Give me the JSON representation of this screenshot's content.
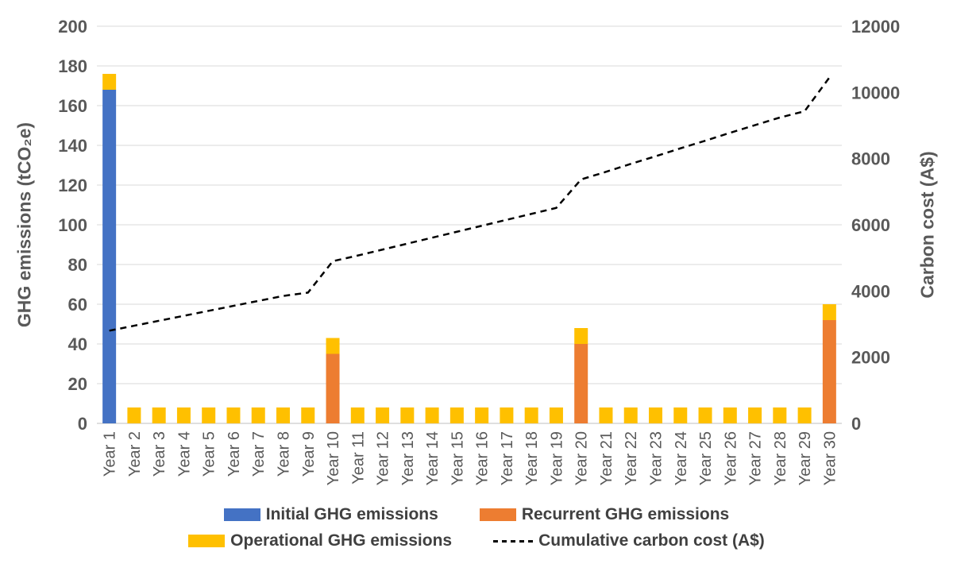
{
  "chart_data": {
    "type": "combo-stacked-bar-line",
    "categories": [
      "Year 1",
      "Year 2",
      "Year 3",
      "Year 4",
      "Year 5",
      "Year 6",
      "Year 7",
      "Year 8",
      "Year 9",
      "Year 10",
      "Year 11",
      "Year 12",
      "Year 13",
      "Year 14",
      "Year 15",
      "Year 16",
      "Year 17",
      "Year 18",
      "Year 19",
      "Year 20",
      "Year 21",
      "Year 22",
      "Year 23",
      "Year 24",
      "Year 25",
      "Year 26",
      "Year 27",
      "Year 28",
      "Year 29",
      "Year 30"
    ],
    "bar_series": [
      {
        "name": "Initial GHG emissions",
        "color": "#4472C4",
        "values": [
          168,
          0,
          0,
          0,
          0,
          0,
          0,
          0,
          0,
          0,
          0,
          0,
          0,
          0,
          0,
          0,
          0,
          0,
          0,
          0,
          0,
          0,
          0,
          0,
          0,
          0,
          0,
          0,
          0,
          0
        ]
      },
      {
        "name": "Recurrent GHG emissions",
        "color": "#ED7D31",
        "values": [
          0,
          0,
          0,
          0,
          0,
          0,
          0,
          0,
          0,
          35,
          0,
          0,
          0,
          0,
          0,
          0,
          0,
          0,
          0,
          40,
          0,
          0,
          0,
          0,
          0,
          0,
          0,
          0,
          0,
          52
        ]
      },
      {
        "name": "Operational GHG emissions",
        "color": "#FFC000",
        "values": [
          8,
          8,
          8,
          8,
          8,
          8,
          8,
          8,
          8,
          8,
          8,
          8,
          8,
          8,
          8,
          8,
          8,
          8,
          8,
          8,
          8,
          8,
          8,
          8,
          8,
          8,
          8,
          8,
          8,
          8
        ]
      }
    ],
    "line_series": {
      "name": "Cumulative carbon cost (A$)",
      "color": "#000000",
      "style": "dashed",
      "axis": "right",
      "values": [
        2800,
        2950,
        3100,
        3250,
        3400,
        3550,
        3700,
        3850,
        3950,
        4900,
        5070,
        5250,
        5430,
        5610,
        5790,
        5970,
        6150,
        6330,
        6510,
        7370,
        7600,
        7840,
        8070,
        8310,
        8540,
        8780,
        9010,
        9240,
        9430,
        10450
      ]
    },
    "left_axis": {
      "title": "GHG emissions (tCO₂e)",
      "min": 0,
      "max": 200,
      "step": 20
    },
    "right_axis": {
      "title": "Carbon cost (A$)",
      "min": 0,
      "max": 12000,
      "step": 2000
    },
    "grid": true,
    "colors": {
      "gridline": "#D9D9D9",
      "axis_line": "#BFBFBF",
      "tick_label": "#595959",
      "legend_text": "#404040"
    },
    "legend_position": "bottom"
  }
}
